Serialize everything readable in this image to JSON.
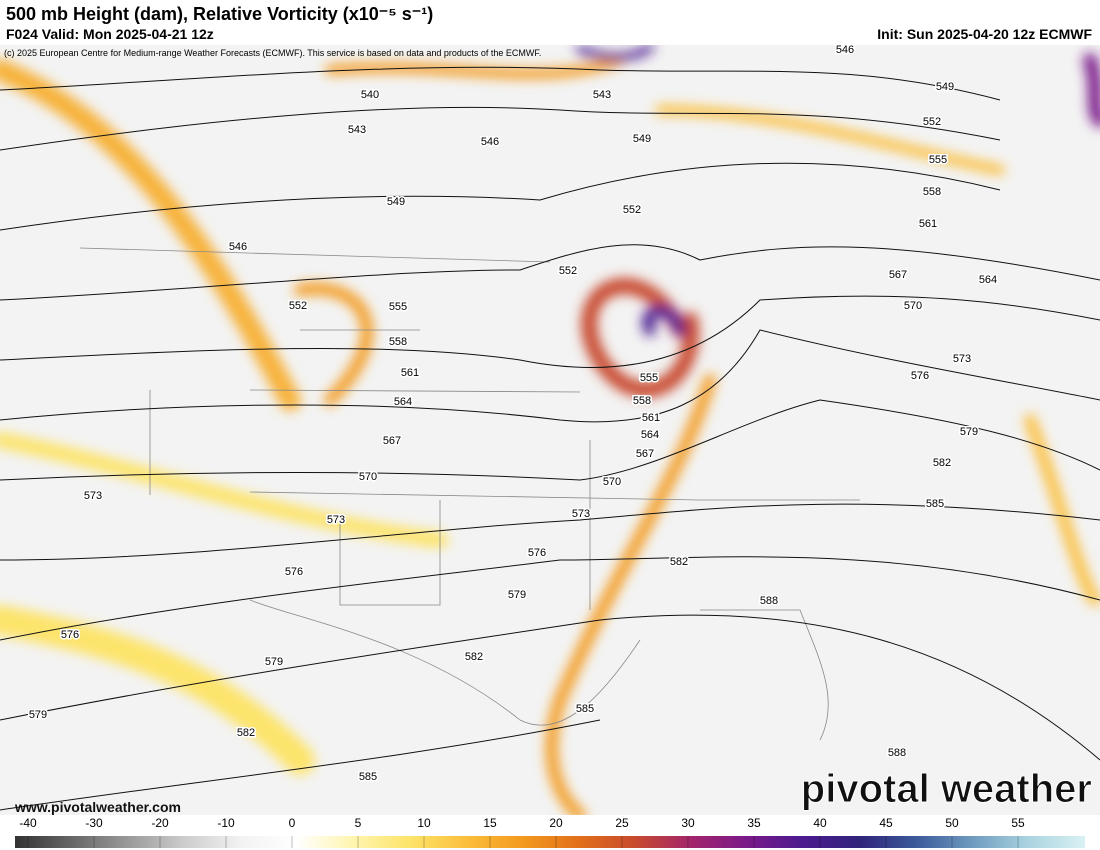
{
  "header": {
    "title": "500 mb Height (dam), Relative Vorticity (x10⁻⁵ s⁻¹)",
    "valid": "F024 Valid: Mon 2025-04-21 12z",
    "init": "Init: Sun 2025-04-20 12z ECMWF",
    "copyright": "(c) 2025 European Centre for Medium-range Weather Forecasts (ECMWF). This service is based on data and products of the ECMWF."
  },
  "contour_labels": [
    546,
    540,
    543,
    549,
    543,
    552,
    546,
    549,
    555,
    549,
    552,
    558,
    546,
    561,
    552,
    567,
    564,
    552,
    555,
    570,
    558,
    573,
    561,
    555,
    576,
    564,
    558,
    561,
    579,
    567,
    564,
    567,
    582,
    570,
    570,
    573,
    585,
    573,
    573,
    576,
    582,
    576,
    579,
    588,
    576,
    582,
    579,
    585,
    579,
    582,
    588,
    585
  ],
  "watermark": "pivotal weather",
  "url": "www.pivotalweather.com",
  "colorbar": {
    "ticks": [
      -40,
      -30,
      -20,
      -10,
      0,
      5,
      10,
      15,
      20,
      25,
      30,
      35,
      40,
      45,
      50,
      55
    ],
    "colors": [
      "#333333",
      "#666666",
      "#999999",
      "#cccccc",
      "#f2f2f2",
      "#ffffff",
      "#fff5b0",
      "#fde46a",
      "#fbbf3c",
      "#f39a1f",
      "#e2701a",
      "#c84a2e",
      "#a3256b",
      "#7a1a8a",
      "#4b1a8f",
      "#30247a",
      "#3b5a9a",
      "#6f9bbf",
      "#aad4e0",
      "#d9f1f3"
    ]
  }
}
